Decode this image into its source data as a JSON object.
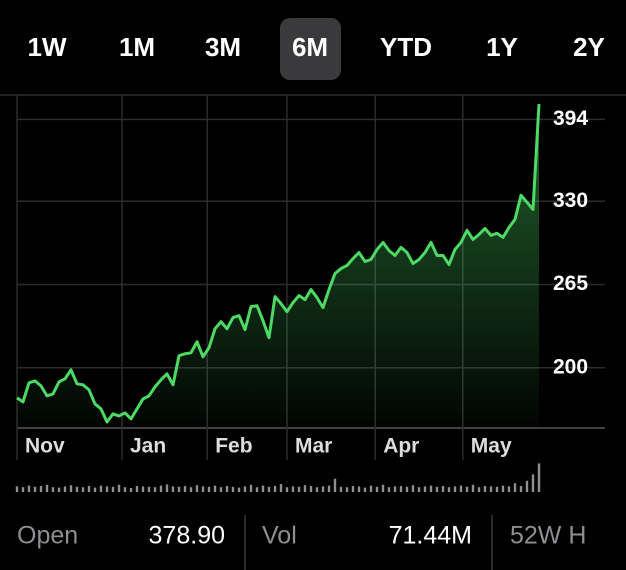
{
  "range_tabs": [
    "1W",
    "1M",
    "3M",
    "6M",
    "YTD",
    "1Y",
    "2Y"
  ],
  "selected_range": 3,
  "chart_data": {
    "type": "line",
    "x": [
      0,
      1,
      2,
      3,
      4,
      5,
      6,
      7,
      8,
      9,
      10,
      11,
      12,
      13,
      14,
      15,
      16,
      17,
      18,
      19,
      20,
      21,
      22,
      23,
      24,
      25,
      26,
      27,
      28,
      29,
      30,
      31,
      32,
      33,
      34,
      35,
      36,
      37,
      38,
      39,
      40,
      41,
      42,
      43,
      44,
      45,
      46,
      47,
      48,
      49,
      50,
      51,
      52,
      53,
      54,
      55,
      56,
      57,
      58,
      59,
      60,
      61,
      62,
      63,
      64,
      65,
      66,
      67,
      68,
      69,
      70,
      71,
      72,
      73,
      74,
      75,
      76,
      77,
      78,
      79,
      80,
      81,
      82,
      83,
      84,
      85,
      86,
      87
    ],
    "series": [
      {
        "name": "Price",
        "color": "#4cd964",
        "values": [
          176.5,
          173.4,
          188.3,
          189.8,
          185.9,
          178.1,
          179.6,
          189.0,
          191.4,
          198.4,
          187.5,
          186.7,
          182.8,
          171.8,
          167.9,
          157.7,
          164.0,
          162.4,
          164.8,
          160.1,
          167.9,
          175.7,
          178.1,
          185.1,
          190.6,
          195.3,
          186.7,
          209.4,
          211.0,
          211.7,
          220.4,
          208.6,
          215.7,
          230.5,
          236.0,
          230.5,
          239.2,
          240.7,
          229.8,
          247.8,
          248.5,
          236.8,
          223.5,
          255.6,
          250.1,
          243.8,
          250.9,
          256.4,
          253.2,
          261.1,
          254.8,
          247.0,
          261.1,
          273.6,
          277.5,
          279.9,
          285.3,
          290.0,
          283.0,
          284.6,
          292.4,
          297.9,
          291.6,
          287.7,
          294.0,
          290.0,
          281.4,
          284.6,
          290.0,
          297.9,
          287.7,
          287.7,
          280.6,
          292.4,
          297.9,
          307.3,
          300.2,
          304.1,
          308.8,
          303.4,
          305.0,
          301.8,
          309.6,
          315.9,
          334.7,
          329.2,
          323.7,
          405.9
        ]
      }
    ],
    "volume": {
      "color": "#8e8e93",
      "values": [
        14,
        12,
        16,
        13,
        15,
        18,
        12,
        11,
        14,
        17,
        13,
        12,
        15,
        11,
        16,
        14,
        13,
        18,
        12,
        10,
        15,
        14,
        13,
        12,
        16,
        19,
        14,
        13,
        15,
        12,
        17,
        14,
        13,
        16,
        12,
        15,
        13,
        11,
        14,
        18,
        12,
        16,
        13,
        15,
        20,
        12,
        14,
        13,
        17,
        15,
        12,
        14,
        16,
        33,
        13,
        12,
        15,
        14,
        11,
        16,
        13,
        18,
        12,
        14,
        15,
        13,
        17,
        12,
        14,
        16,
        13,
        15,
        12,
        14,
        16,
        13,
        18,
        12,
        15,
        14,
        13,
        16,
        14,
        22,
        15,
        28,
        44,
        71.44
      ],
      "ylim": [
        0,
        80
      ]
    },
    "xlim": [
      0,
      98
    ],
    "xticks": [
      {
        "value": 0,
        "label": "Nov"
      },
      {
        "value": 17.5,
        "label": "Jan"
      },
      {
        "value": 31.7,
        "label": "Feb"
      },
      {
        "value": 45,
        "label": "Mar"
      },
      {
        "value": 59.7,
        "label": "Apr"
      },
      {
        "value": 74.3,
        "label": "May"
      }
    ],
    "ylim": [
      153,
      413
    ],
    "yticks": [
      200,
      265,
      330,
      394
    ],
    "grid": true
  },
  "stats": [
    {
      "label": "Open",
      "value": "378.90"
    },
    {
      "label": "Vol",
      "value": "71.44M"
    },
    {
      "label": "52W H"
    }
  ]
}
